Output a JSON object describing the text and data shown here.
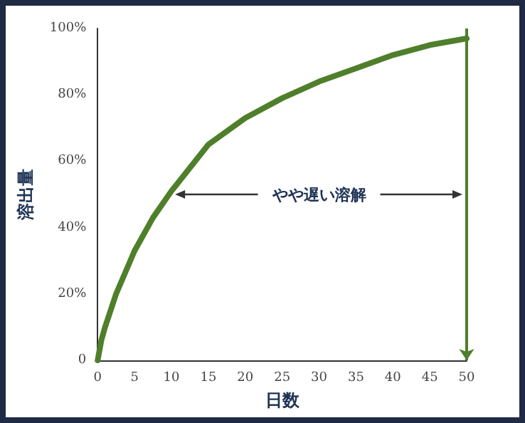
{
  "chart_data": {
    "type": "line",
    "xlabel": "日数",
    "ylabel": "溶出量",
    "x": [
      0,
      0.5,
      1,
      2.5,
      5,
      7.5,
      10,
      15,
      20,
      25,
      30,
      35,
      40,
      45,
      50
    ],
    "series": [
      {
        "color": "#4f7f2a",
        "values": [
          0,
          6,
          10,
          20,
          33,
          43,
          51,
          65,
          73,
          79,
          84,
          88,
          92,
          95,
          97
        ]
      }
    ],
    "xlim": [
      0,
      50
    ],
    "xticks": [
      0,
      5,
      10,
      15,
      20,
      25,
      30,
      35,
      40,
      45,
      50
    ],
    "ylim": [
      0,
      100
    ],
    "yticks": [
      {
        "value": 0,
        "label": "0"
      },
      {
        "value": 20,
        "label": "20%"
      },
      {
        "value": 40,
        "label": "40%"
      },
      {
        "value": 60,
        "label": "60%"
      },
      {
        "value": 80,
        "label": "80%"
      },
      {
        "value": 100,
        "label": "100%"
      }
    ],
    "annotations": [
      "やや遅い溶解"
    ],
    "ref_lines": [
      {
        "axis": "x",
        "value": 50,
        "color": "#4f7f2a"
      }
    ],
    "grid": false,
    "marker": "none",
    "line_style": "solid"
  }
}
